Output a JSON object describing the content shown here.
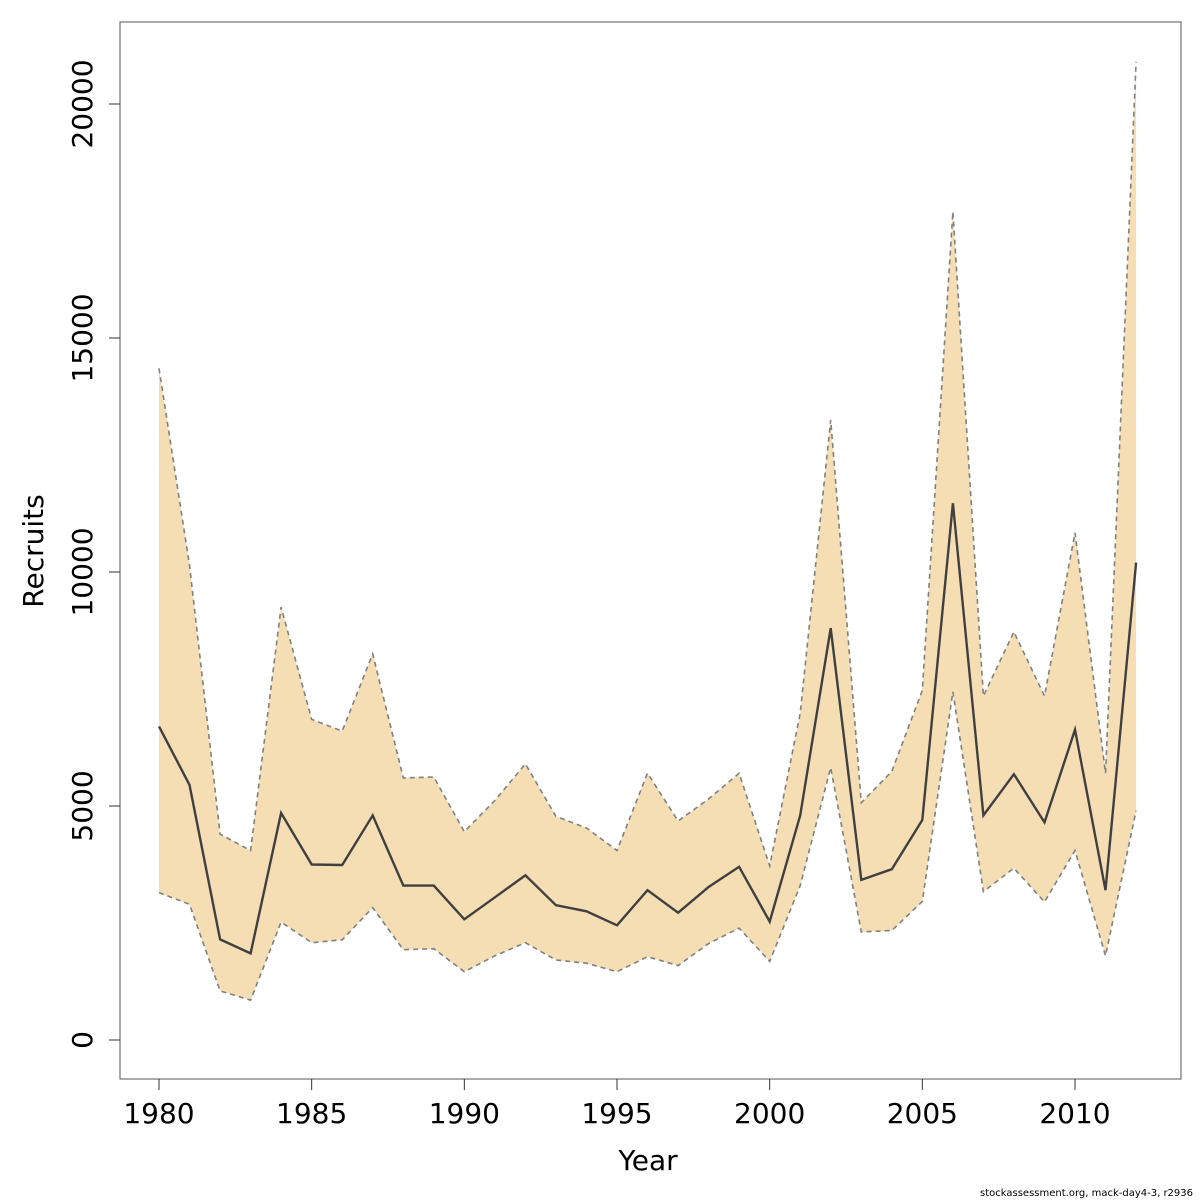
{
  "chart_data": {
    "type": "area",
    "title": "",
    "xlabel": "Year",
    "ylabel": "Recruits",
    "xlim": [
      1979,
      1981
    ],
    "ylim": [
      0,
      21000
    ],
    "x_ticks": [
      1980,
      1985,
      1990,
      1995,
      2000,
      2005,
      2010
    ],
    "y_ticks": [
      0,
      5000,
      10000,
      15000,
      20000
    ],
    "grid": false,
    "legend": "none",
    "colors": {
      "band_fill": "#f5deb3",
      "band_edge": "#808080",
      "line": "#404040",
      "frame": "#000000"
    },
    "x": [
      1980,
      1981,
      1982,
      1983,
      1984,
      1985,
      1986,
      1987,
      1988,
      1989,
      1990,
      1991,
      1992,
      1993,
      1994,
      1995,
      1996,
      1997,
      1998,
      1999,
      2000,
      2001,
      2002,
      2003,
      2004,
      2005,
      2006,
      2007,
      2008,
      2009,
      2010,
      2011,
      2012
    ],
    "series": [
      {
        "role": "estimate",
        "values": [
          6700,
          5450,
          2150,
          1850,
          4850,
          3750,
          3740,
          4800,
          3300,
          3300,
          2580,
          3050,
          3520,
          2880,
          2750,
          2450,
          3200,
          2720,
          3270,
          3700,
          2530,
          4800,
          8800,
          3420,
          3650,
          4700,
          11470,
          4800,
          5680,
          4650,
          6630,
          3200,
          10200
        ]
      },
      {
        "role": "upper",
        "values": [
          14350,
          10150,
          4400,
          4050,
          9250,
          6850,
          6600,
          8250,
          5600,
          5620,
          4450,
          5120,
          5900,
          4780,
          4530,
          4050,
          5700,
          4680,
          5150,
          5700,
          3720,
          6980,
          13250,
          5070,
          5740,
          7470,
          17700,
          7350,
          8720,
          7350,
          10840,
          5700,
          20900
        ]
      },
      {
        "role": "lower",
        "values": [
          3150,
          2900,
          1050,
          850,
          2520,
          2080,
          2140,
          2830,
          1930,
          1950,
          1460,
          1800,
          2080,
          1710,
          1640,
          1460,
          1780,
          1590,
          2060,
          2390,
          1680,
          3300,
          5820,
          2310,
          2340,
          2960,
          7440,
          3170,
          3670,
          2950,
          4050,
          1800,
          4900
        ]
      }
    ]
  },
  "footnote": "stockassessment.org, mack-day4-3, r2936"
}
